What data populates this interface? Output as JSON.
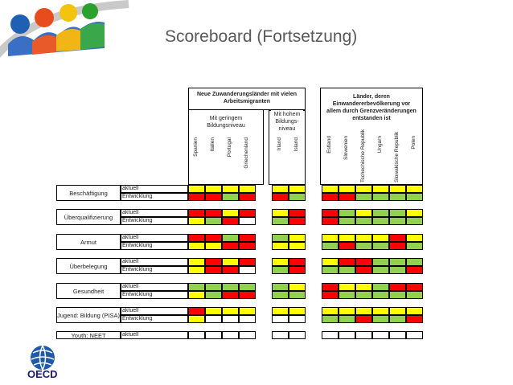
{
  "title": "Scoreboard (Fortsetzung)",
  "logo_text": "OECD",
  "colors": {
    "yellow": "#ffff00",
    "red": "#ff0000",
    "green": "#92d050",
    "white": "#ffffff"
  },
  "header": {
    "group1": "Neue Zuwanderungsländer mit vielen Arbeitsmigranten",
    "group1a": "Mit geringem Bildungsniveau",
    "group1b": "Mit hohem Bildungs-niveau",
    "group2": "Länder, deren Einwandererbevölkerung vor allem durch Grenzveränderungen entstanden ist"
  },
  "countries_group1a": [
    "Spanien",
    "Italien",
    "Portugal",
    "Griechenland"
  ],
  "countries_group1b": [
    "Irland",
    "Island"
  ],
  "countries_group2": [
    "Estland",
    "Slowenien",
    "Tschechische Republik",
    "Ungarn",
    "Slowakische Republik",
    "Polen"
  ],
  "sub_labels": {
    "current": "aktuell",
    "trend": "Entwicklung"
  },
  "rows": [
    {
      "label": "Beschäftigung",
      "cells": [
        [
          "y",
          "y",
          "y",
          "y",
          "y",
          "y",
          "y",
          "y",
          "y",
          "y",
          "y",
          "y"
        ],
        [
          "r",
          "r",
          "g",
          "r",
          "r",
          "g",
          "r",
          "r",
          "g",
          "g",
          "g",
          "g"
        ]
      ]
    },
    {
      "label": "Überqualifizierung",
      "cells": [
        [
          "r",
          "r",
          "y",
          "r",
          "y",
          "r",
          "r",
          "g",
          "y",
          "g",
          "g",
          "y"
        ],
        [
          "y",
          "g",
          "r",
          "w",
          "g",
          "r",
          "r",
          "g",
          "g",
          "g",
          "g",
          "g"
        ]
      ]
    },
    {
      "label": "Armut",
      "cells": [
        [
          "r",
          "r",
          "g",
          "r",
          "g",
          "y",
          "y",
          "y",
          "y",
          "y",
          "r",
          "y"
        ],
        [
          "y",
          "y",
          "r",
          "r",
          "y",
          "y",
          "g",
          "r",
          "g",
          "g",
          "r",
          "g"
        ]
      ]
    },
    {
      "label": "Überbelegung",
      "cells": [
        [
          "y",
          "r",
          "y",
          "r",
          "y",
          "r",
          "y",
          "r",
          "r",
          "g",
          "g",
          "g"
        ],
        [
          "y",
          "r",
          "r",
          "w",
          "g",
          "r",
          "g",
          "g",
          "r",
          "g",
          "g",
          "r"
        ]
      ]
    },
    {
      "label": "Gesundheit",
      "cells": [
        [
          "g",
          "g",
          "g",
          "g",
          "g",
          "y",
          "r",
          "y",
          "y",
          "g",
          "r",
          "r"
        ],
        [
          "y",
          "g",
          "r",
          "r",
          "g",
          "g",
          "r",
          "g",
          "g",
          "g",
          "g",
          "g"
        ]
      ]
    },
    {
      "label": "Jugend: Bildung (PISA)",
      "cells": [
        [
          "r",
          "y",
          "y",
          "y",
          "y",
          "y",
          "y",
          "y",
          "y",
          "y",
          "y",
          "y"
        ],
        [
          "y",
          "w",
          "w",
          "w",
          "w",
          "w",
          "g",
          "g",
          "r",
          "g",
          "g",
          "r"
        ]
      ]
    },
    {
      "label": "Youth: NEET",
      "cells": [
        [
          "w",
          "w",
          "w",
          "w",
          "w",
          "w",
          "w",
          "w",
          "w",
          "w",
          "w",
          "w"
        ]
      ]
    }
  ]
}
